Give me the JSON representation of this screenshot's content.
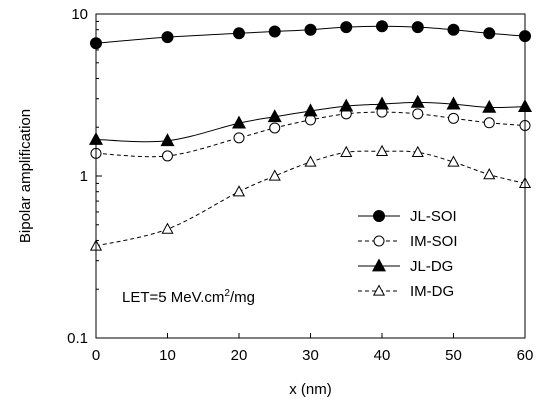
{
  "chart_data": {
    "type": "line",
    "xlabel": "x (nm)",
    "ylabel": "Bipolar amplification",
    "xlim": [
      0,
      60
    ],
    "ylim": [
      0.1,
      10
    ],
    "yscale": "log",
    "grid": false,
    "legend_position": "bottom-right",
    "x_ticks": [
      "0",
      "10",
      "20",
      "30",
      "40",
      "50",
      "60"
    ],
    "y_ticks": [
      "0.1",
      "1",
      "10"
    ],
    "annotation": {
      "prefix": "LET=5 MeV.cm",
      "superscript": "2",
      "suffix": "/mg"
    },
    "series": [
      {
        "name": "JL-SOI",
        "marker": "circle-filled",
        "line": "solid",
        "x": [
          0,
          10,
          20,
          25,
          30,
          35,
          40,
          45,
          50,
          55,
          60
        ],
        "y": [
          6.6,
          7.2,
          7.6,
          7.8,
          8.0,
          8.3,
          8.4,
          8.3,
          8.0,
          7.6,
          7.3
        ]
      },
      {
        "name": "IM-SOI",
        "marker": "circle-open",
        "line": "dashed",
        "x": [
          0,
          10,
          20,
          25,
          30,
          35,
          40,
          45,
          50,
          55,
          60
        ],
        "y": [
          1.38,
          1.33,
          1.72,
          1.98,
          2.22,
          2.42,
          2.48,
          2.42,
          2.27,
          2.13,
          2.05
        ]
      },
      {
        "name": "JL-DG",
        "marker": "triangle-filled",
        "line": "solid",
        "x": [
          0,
          10,
          20,
          25,
          30,
          35,
          40,
          45,
          50,
          55,
          60
        ],
        "y": [
          1.68,
          1.65,
          2.12,
          2.32,
          2.52,
          2.7,
          2.78,
          2.85,
          2.78,
          2.65,
          2.68
        ]
      },
      {
        "name": "IM-DG",
        "marker": "triangle-open",
        "line": "dashed",
        "x": [
          0,
          10,
          20,
          25,
          30,
          35,
          40,
          45,
          50,
          55,
          60
        ],
        "y": [
          0.37,
          0.47,
          0.8,
          1.0,
          1.22,
          1.4,
          1.42,
          1.4,
          1.22,
          1.02,
          0.9
        ]
      }
    ]
  }
}
